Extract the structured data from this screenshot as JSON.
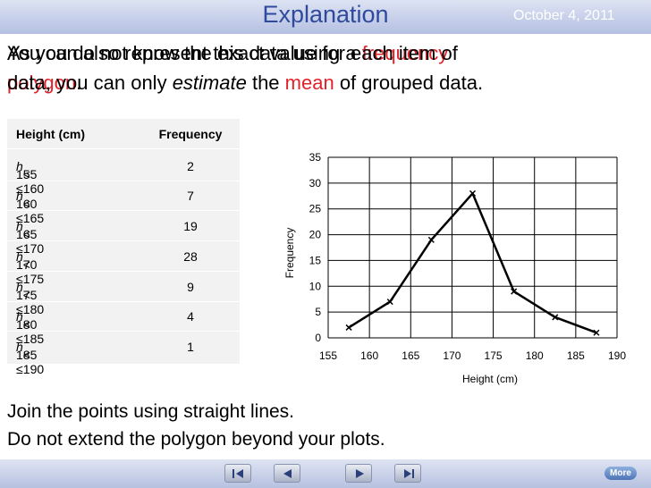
{
  "header": {
    "title": "Explanation",
    "date": "October 4, 2011"
  },
  "overlay_text": {
    "line_a1": "You can also represent this data using a ",
    "line_a1_red": "frequency",
    "line_a2_red": "polygon",
    "line_a2": ".",
    "line_b1": "As you do not know the exact value for each item of",
    "line_b2a": "data, you can only ",
    "line_b2_em": "estimate",
    "line_b2b": " the ",
    "line_b2_red": "mean",
    "line_b2c": " of grouped data."
  },
  "table": {
    "headers": [
      "Height (cm)",
      "Frequency"
    ],
    "rows": [
      {
        "class": "155 ≤ h < 160",
        "lower": "155 ≤ ",
        "var": "h",
        "upper": " < 160",
        "frequency": "2"
      },
      {
        "class": "160 ≤ h < 165",
        "lower": "160 ≤ ",
        "var": "h",
        "upper": " < 165",
        "frequency": "7"
      },
      {
        "class": "165 ≤ h < 170",
        "lower": "165 ≤ ",
        "var": "h",
        "upper": " < 170",
        "frequency": "19"
      },
      {
        "class": "170 ≤ h < 175",
        "lower": "170 ≤ ",
        "var": "h",
        "upper": " < 175",
        "frequency": "28"
      },
      {
        "class": "175 ≤ h < 180",
        "lower": "175 ≤ ",
        "var": "h",
        "upper": " < 180",
        "frequency": "9"
      },
      {
        "class": "180 ≤ h < 185",
        "lower": "180 ≤ ",
        "var": "h",
        "upper": " < 185",
        "frequency": "4"
      },
      {
        "class": "185 ≤ h < 190",
        "lower": "185 ≤ ",
        "var": "h",
        "upper": " < 190",
        "frequency": "1"
      }
    ]
  },
  "chart_data": {
    "type": "line",
    "title": "",
    "xlabel": "Height (cm)",
    "ylabel": "Frequency",
    "xlim": [
      155,
      190
    ],
    "ylim": [
      0,
      35
    ],
    "xticks": [
      155,
      160,
      165,
      170,
      175,
      180,
      185,
      190
    ],
    "yticks": [
      0,
      5,
      10,
      15,
      20,
      25,
      30,
      35
    ],
    "grid": true,
    "marker": "x",
    "x": [
      157.5,
      162.5,
      167.5,
      172.5,
      177.5,
      182.5,
      187.5
    ],
    "y": [
      2,
      7,
      19,
      28,
      9,
      4,
      1
    ]
  },
  "instructions": {
    "line1": "Join the points using straight lines.",
    "line2": "Do not extend the polygon beyond your plots."
  },
  "footer": {
    "more_label": "More"
  },
  "colors": {
    "accent_red": "#e0232a",
    "title_blue": "#2f4a9c"
  }
}
